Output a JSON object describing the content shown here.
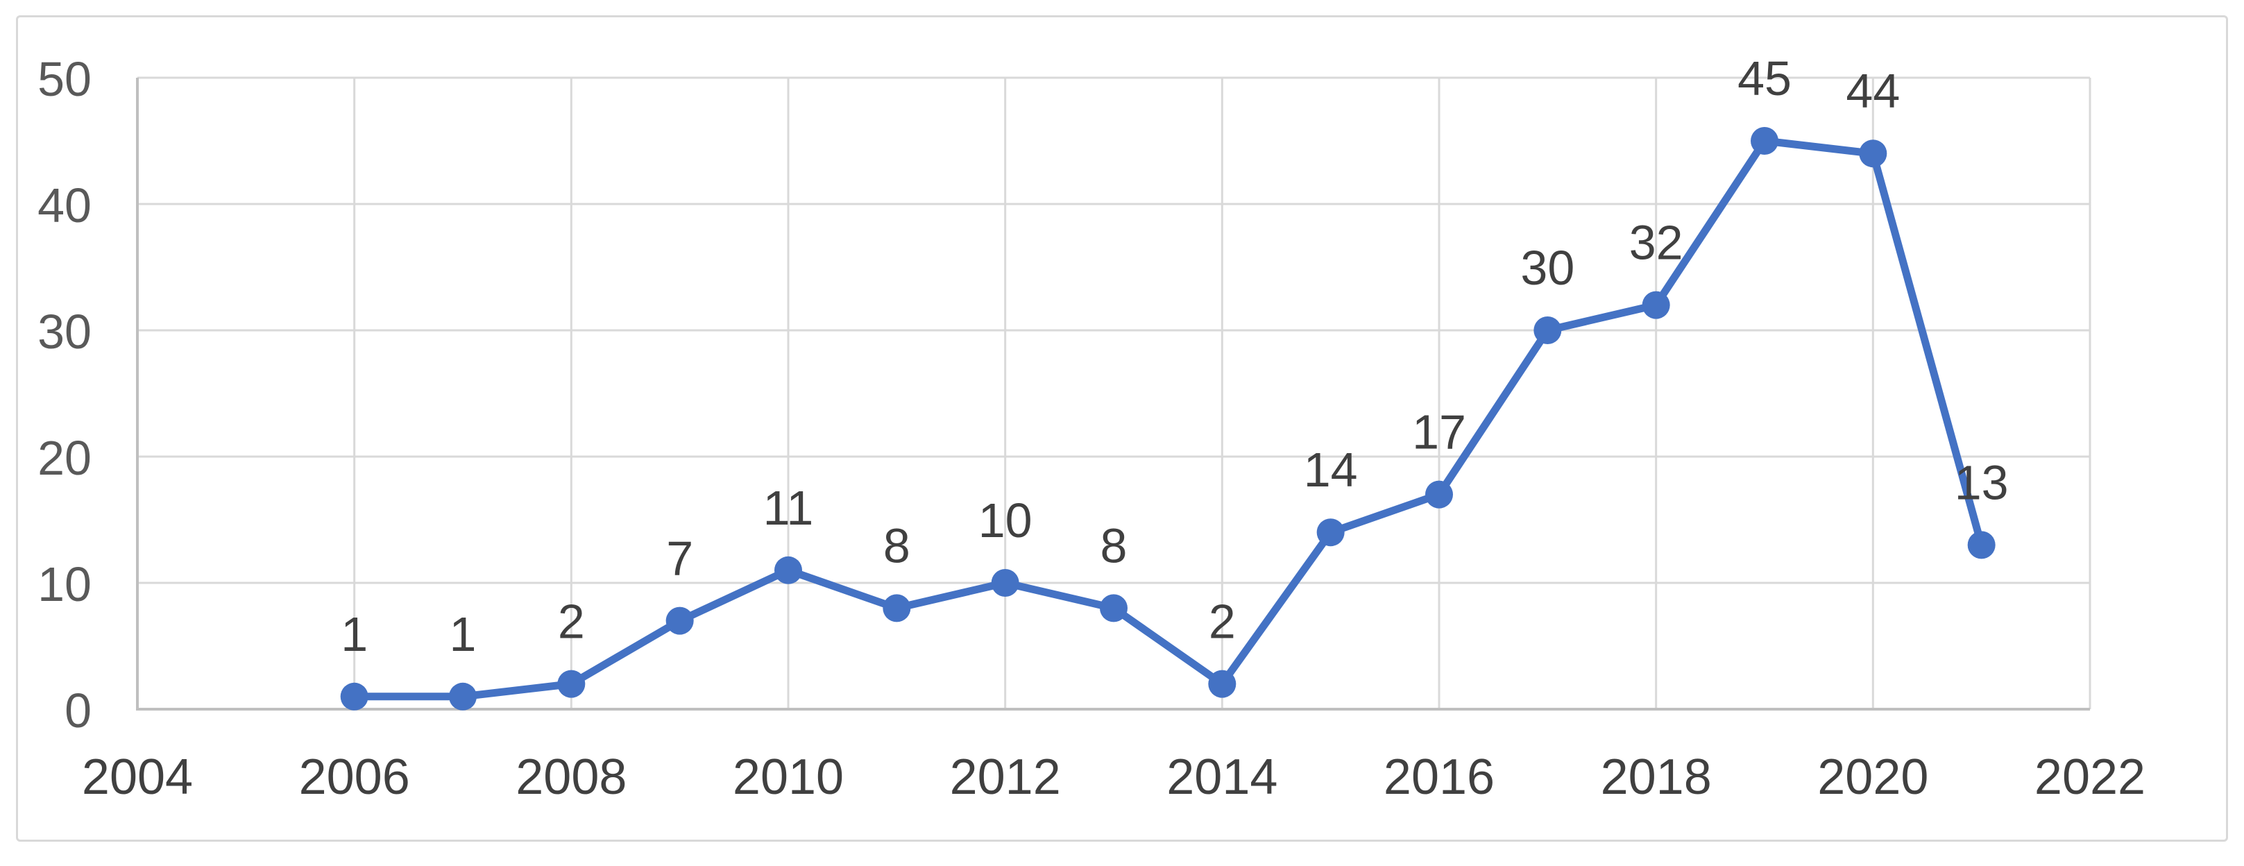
{
  "chart_data": {
    "type": "line",
    "title": "",
    "xlabel": "",
    "ylabel": "",
    "x": [
      2006,
      2007,
      2008,
      2009,
      2010,
      2011,
      2012,
      2013,
      2014,
      2015,
      2016,
      2017,
      2018,
      2019,
      2020,
      2021
    ],
    "values": [
      1,
      1,
      2,
      7,
      11,
      8,
      10,
      8,
      2,
      14,
      17,
      30,
      32,
      45,
      44,
      13
    ],
    "data_labels": [
      "1",
      "1",
      "2",
      "7",
      "11",
      "8",
      "10",
      "8",
      "2",
      "14",
      "17",
      "30",
      "32",
      "45",
      "44",
      "13"
    ],
    "xlim": [
      2004,
      2022
    ],
    "ylim": [
      0,
      50
    ],
    "x_ticks": [
      2004,
      2006,
      2008,
      2010,
      2012,
      2014,
      2016,
      2018,
      2020,
      2022
    ],
    "y_ticks": [
      0,
      10,
      20,
      30,
      40,
      50
    ],
    "grid": true,
    "legend": false,
    "marker_style": "circle",
    "colors": {
      "line": "#4472C4",
      "marker": "#4472C4",
      "gridline": "#D9D9D9",
      "axis_line": "#BFBFBF",
      "y_tick_label": "#595959",
      "x_tick_label": "#404040",
      "data_label": "#404040",
      "border": "#D9D9D9",
      "background": "#FFFFFF"
    }
  }
}
